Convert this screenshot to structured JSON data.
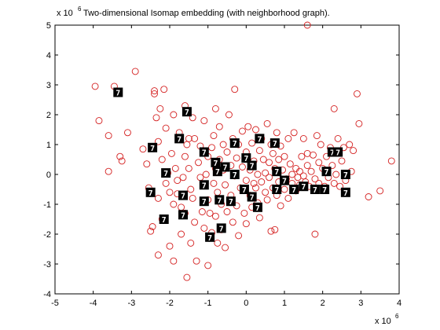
{
  "chart_data": {
    "type": "scatter",
    "title": "Two-dimensional Isomap embedding (with neighborhood graph).",
    "x_exponent_label": "x 10",
    "x_exponent_power": "6",
    "y_exponent_label": "x 10",
    "y_exponent_power": "6",
    "xlim": [
      -5,
      4
    ],
    "ylim": [
      -4,
      5
    ],
    "x_ticks": [
      -5,
      -4,
      -3,
      -2,
      -1,
      0,
      1,
      2,
      3,
      4
    ],
    "y_ticks": [
      -4,
      -3,
      -2,
      -1,
      0,
      1,
      2,
      3,
      4,
      5
    ],
    "marker_color": "#d42020",
    "series": [
      {
        "marker": "circle",
        "points": [
          [
            -3.95,
            2.95
          ],
          [
            -3.85,
            1.8
          ],
          [
            -3.6,
            1.3
          ],
          [
            -3.6,
            0.1
          ],
          [
            -3.45,
            2.95
          ],
          [
            -3.3,
            0.6
          ],
          [
            -3.25,
            0.45
          ],
          [
            -3.1,
            1.4
          ],
          [
            -2.9,
            3.45
          ],
          [
            -2.7,
            0.85
          ],
          [
            -2.6,
            0.35
          ],
          [
            -2.55,
            -0.45
          ],
          [
            -2.5,
            -1.9
          ],
          [
            -2.45,
            -1.75
          ],
          [
            -2.4,
            2.8
          ],
          [
            -2.4,
            2.7
          ],
          [
            -2.35,
            1.9
          ],
          [
            -2.3,
            1.1
          ],
          [
            -2.3,
            -0.8
          ],
          [
            -2.3,
            -2.7
          ],
          [
            -2.25,
            2.2
          ],
          [
            -2.2,
            0.5
          ],
          [
            -2.2,
            -1.5
          ],
          [
            -2.15,
            2.85
          ],
          [
            -2.1,
            1.55
          ],
          [
            -2.1,
            -0.3
          ],
          [
            -2.05,
            0.05
          ],
          [
            -2.0,
            -0.6
          ],
          [
            -2.0,
            -2.4
          ],
          [
            -1.95,
            0.7
          ],
          [
            -1.9,
            2.0
          ],
          [
            -1.9,
            -1.0
          ],
          [
            -1.9,
            -2.9
          ],
          [
            -1.85,
            0.2
          ],
          [
            -1.8,
            -0.2
          ],
          [
            -1.8,
            -0.65
          ],
          [
            -1.75,
            1.4
          ],
          [
            -1.7,
            -1.1
          ],
          [
            -1.7,
            -2.0
          ],
          [
            -1.65,
            -0.1
          ],
          [
            -1.6,
            0.6
          ],
          [
            -1.6,
            2.3
          ],
          [
            -1.6,
            -1.3
          ],
          [
            -1.55,
            1.0
          ],
          [
            -1.55,
            -3.45
          ],
          [
            -1.5,
            1.2
          ],
          [
            -1.5,
            0.2
          ],
          [
            -1.45,
            -0.5
          ],
          [
            -1.45,
            -2.3
          ],
          [
            -1.4,
            1.9
          ],
          [
            -1.4,
            -0.8
          ],
          [
            -1.35,
            1.2
          ],
          [
            -1.35,
            -1.6
          ],
          [
            -1.3,
            -2.9
          ],
          [
            -1.25,
            0.4
          ],
          [
            -1.2,
            0.95
          ],
          [
            -1.2,
            -0.1
          ],
          [
            -1.15,
            -1.25
          ],
          [
            -1.1,
            1.8
          ],
          [
            -1.1,
            -1.8
          ],
          [
            -1.05,
            0.0
          ],
          [
            -1.0,
            0.6
          ],
          [
            -1.0,
            -0.85
          ],
          [
            -1.0,
            -3.05
          ],
          [
            -0.95,
            -1.3
          ],
          [
            -0.9,
            0.9
          ],
          [
            -0.9,
            -1.95
          ],
          [
            -0.85,
            1.3
          ],
          [
            -0.85,
            -0.3
          ],
          [
            -0.8,
            2.2
          ],
          [
            -0.8,
            0.2
          ],
          [
            -0.8,
            -1.4
          ],
          [
            -0.75,
            -0.6
          ],
          [
            -0.75,
            -2.3
          ],
          [
            -0.7,
            1.6
          ],
          [
            -0.7,
            0.5
          ],
          [
            -0.65,
            -1.0
          ],
          [
            -0.65,
            -1.85
          ],
          [
            -0.6,
            0.15
          ],
          [
            -0.6,
            1.0
          ],
          [
            -0.55,
            -0.35
          ],
          [
            -0.55,
            -2.45
          ],
          [
            -0.5,
            0.75
          ],
          [
            -0.5,
            -1.25
          ],
          [
            -0.45,
            2.0
          ],
          [
            -0.4,
            0.3
          ],
          [
            -0.4,
            -0.7
          ],
          [
            -0.35,
            1.2
          ],
          [
            -0.35,
            -1.6
          ],
          [
            -0.3,
            2.85
          ],
          [
            -0.3,
            -0.05
          ],
          [
            -0.25,
            0.55
          ],
          [
            -0.25,
            -1.05
          ],
          [
            -0.2,
            1.0
          ],
          [
            -0.2,
            -2.05
          ],
          [
            -0.15,
            -0.45
          ],
          [
            -0.1,
            0.25
          ],
          [
            -0.1,
            1.45
          ],
          [
            -0.05,
            -1.3
          ],
          [
            0.0,
            0.75
          ],
          [
            0.0,
            -0.2
          ],
          [
            0.0,
            -1.65
          ],
          [
            0.05,
            1.6
          ],
          [
            0.1,
            0.15
          ],
          [
            0.1,
            -0.7
          ],
          [
            0.15,
            1.05
          ],
          [
            0.15,
            -1.1
          ],
          [
            0.2,
            0.45
          ],
          [
            0.2,
            -0.3
          ],
          [
            0.25,
            1.5
          ],
          [
            0.25,
            -0.45
          ],
          [
            0.3,
            -0.95
          ],
          [
            0.3,
            0.0
          ],
          [
            0.35,
            0.8
          ],
          [
            0.35,
            -1.45
          ],
          [
            0.4,
            -0.25
          ],
          [
            0.4,
            1.2
          ],
          [
            0.45,
            0.5
          ],
          [
            0.5,
            -0.6
          ],
          [
            0.5,
            0.05
          ],
          [
            0.55,
            1.7
          ],
          [
            0.55,
            -0.85
          ],
          [
            0.6,
            0.4
          ],
          [
            0.6,
            -0.1
          ],
          [
            0.65,
            1.0
          ],
          [
            0.65,
            -1.9
          ],
          [
            0.7,
            0.7
          ],
          [
            0.7,
            -0.45
          ],
          [
            0.75,
            0.2
          ],
          [
            0.75,
            -1.85
          ],
          [
            0.8,
            1.4
          ],
          [
            0.8,
            -0.7
          ],
          [
            0.85,
            0.5
          ],
          [
            0.85,
            -0.25
          ],
          [
            0.9,
            0.95
          ],
          [
            0.9,
            -1.05
          ],
          [
            0.95,
            0.15
          ],
          [
            1.0,
            -0.5
          ],
          [
            1.0,
            0.6
          ],
          [
            1.05,
            -0.15
          ],
          [
            1.1,
            1.2
          ],
          [
            1.1,
            -0.8
          ],
          [
            1.15,
            0.35
          ],
          [
            1.2,
            -0.3
          ],
          [
            1.2,
            0.0
          ],
          [
            1.25,
            1.4
          ],
          [
            1.3,
            0.2
          ],
          [
            1.3,
            -0.55
          ],
          [
            1.35,
            -0.1
          ],
          [
            1.4,
            0.1
          ],
          [
            1.4,
            -0.35
          ],
          [
            1.45,
            0.6
          ],
          [
            1.5,
            -0.05
          ],
          [
            1.5,
            1.2
          ],
          [
            1.55,
            -0.25
          ],
          [
            1.6,
            0.7
          ],
          [
            1.6,
            0.3
          ],
          [
            1.6,
            5.0
          ],
          [
            1.65,
            -0.4
          ],
          [
            1.7,
            0.1
          ],
          [
            1.75,
            0.65
          ],
          [
            1.8,
            -0.15
          ],
          [
            1.8,
            -2.0
          ],
          [
            1.85,
            1.3
          ],
          [
            1.9,
            0.4
          ],
          [
            1.9,
            -0.3
          ],
          [
            1.95,
            1.0
          ],
          [
            2.0,
            0.2
          ],
          [
            2.05,
            -0.4
          ],
          [
            2.1,
            0.6
          ],
          [
            2.15,
            -0.1
          ],
          [
            2.2,
            0.9
          ],
          [
            2.25,
            0.3
          ],
          [
            2.3,
            -0.3
          ],
          [
            2.3,
            2.2
          ],
          [
            2.35,
            0.0
          ],
          [
            2.4,
            1.2
          ],
          [
            2.45,
            -0.4
          ],
          [
            2.5,
            0.45
          ],
          [
            2.55,
            0.9
          ],
          [
            2.6,
            -0.2
          ],
          [
            2.7,
            1.0
          ],
          [
            2.75,
            0.1
          ],
          [
            2.8,
            0.8
          ],
          [
            2.9,
            2.7
          ],
          [
            2.95,
            1.7
          ],
          [
            3.2,
            -0.75
          ],
          [
            3.5,
            -0.55
          ],
          [
            3.8,
            0.45
          ]
        ]
      }
    ],
    "thumbnails": [
      {
        "x": -3.35,
        "y": 2.75,
        "label": "7"
      },
      {
        "x": -1.55,
        "y": 2.1,
        "label": "7"
      },
      {
        "x": -1.75,
        "y": 1.2,
        "label": "7"
      },
      {
        "x": -2.45,
        "y": 0.9,
        "label": "7"
      },
      {
        "x": -2.1,
        "y": 0.05,
        "label": "7"
      },
      {
        "x": -2.5,
        "y": -0.6,
        "label": "7"
      },
      {
        "x": -1.65,
        "y": -0.7,
        "label": "7"
      },
      {
        "x": -2.15,
        "y": -1.5,
        "label": "7"
      },
      {
        "x": -1.65,
        "y": -1.35,
        "label": "7"
      },
      {
        "x": -1.1,
        "y": 0.75,
        "label": "7"
      },
      {
        "x": -0.8,
        "y": 0.4,
        "label": "7"
      },
      {
        "x": -0.75,
        "y": 0.1,
        "label": "7"
      },
      {
        "x": -0.55,
        "y": 0.25,
        "label": "7"
      },
      {
        "x": -0.3,
        "y": 0.0,
        "label": "7"
      },
      {
        "x": -0.3,
        "y": 1.05,
        "label": "7"
      },
      {
        "x": -1.1,
        "y": -0.35,
        "label": "7"
      },
      {
        "x": -1.1,
        "y": -0.9,
        "label": "7"
      },
      {
        "x": -0.7,
        "y": -0.85,
        "label": "7"
      },
      {
        "x": -0.4,
        "y": -0.9,
        "label": "7"
      },
      {
        "x": -0.05,
        "y": -0.5,
        "label": "7"
      },
      {
        "x": 0.0,
        "y": 0.55,
        "label": "7"
      },
      {
        "x": 0.15,
        "y": 0.3,
        "label": "7"
      },
      {
        "x": 0.35,
        "y": 1.2,
        "label": "7"
      },
      {
        "x": 0.75,
        "y": 1.05,
        "label": "7"
      },
      {
        "x": 0.15,
        "y": -0.75,
        "label": "7"
      },
      {
        "x": 0.3,
        "y": -1.1,
        "label": "7"
      },
      {
        "x": 0.8,
        "y": 0.1,
        "label": "7"
      },
      {
        "x": 0.8,
        "y": -0.5,
        "label": "7"
      },
      {
        "x": 1.0,
        "y": -0.2,
        "label": "7"
      },
      {
        "x": 1.25,
        "y": -0.5,
        "label": "7"
      },
      {
        "x": 1.5,
        "y": -0.4,
        "label": "7"
      },
      {
        "x": 1.8,
        "y": -0.5,
        "label": "7"
      },
      {
        "x": 2.05,
        "y": -0.5,
        "label": "7"
      },
      {
        "x": 2.1,
        "y": 0.1,
        "label": "7"
      },
      {
        "x": 2.25,
        "y": 0.75,
        "label": "7"
      },
      {
        "x": 2.4,
        "y": 0.75,
        "label": "7"
      },
      {
        "x": 2.6,
        "y": 0.0,
        "label": "7"
      },
      {
        "x": 2.6,
        "y": -0.6,
        "label": "7"
      },
      {
        "x": -0.65,
        "y": -1.8,
        "label": "7"
      },
      {
        "x": -0.95,
        "y": -2.1,
        "label": "7"
      }
    ]
  }
}
